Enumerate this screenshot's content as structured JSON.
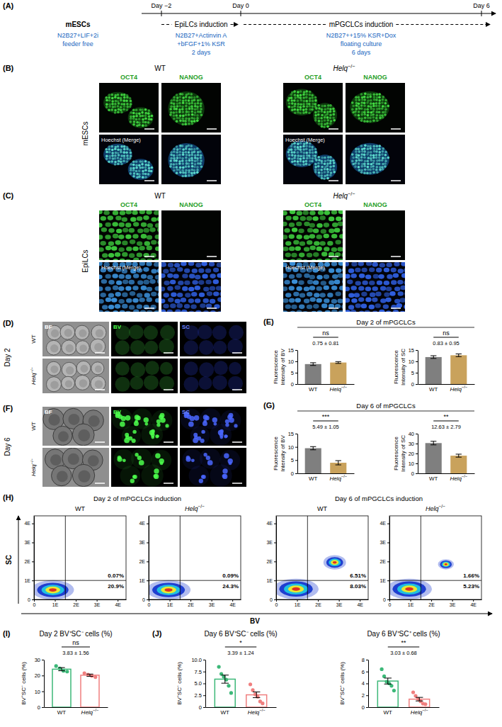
{
  "schematic": {
    "panel_label": "(A)",
    "days": [
      "Day −2",
      "Day 0",
      "Day 6"
    ],
    "stages": [
      {
        "label": "mESCs",
        "conditions": [
          "N2B27+LIF+2i",
          "feeder free"
        ]
      },
      {
        "label": "EpiLCs induction",
        "conditions": [
          "N2B27+Actinvin A",
          "+bFGF+1% KSR",
          "2 days"
        ]
      },
      {
        "label": "mPGCLCs induction",
        "conditions": [
          "N2B27++15% KSR+Dox",
          "floating culture",
          "6 days"
        ]
      }
    ]
  },
  "image_panels": [
    {
      "panel_label": "(B)",
      "row_title": "mESCs",
      "groups": [
        "WT",
        "Helq−/−"
      ],
      "channels": [
        "OCT4",
        "NANOG"
      ],
      "merge_label": "Hoechst (Merge)"
    },
    {
      "panel_label": "(C)",
      "row_title": "EpiLCs",
      "groups": [
        "WT",
        "Helq−/−"
      ],
      "channels": [
        "OCT4",
        "NANOG"
      ],
      "merge_label": "Hoechst (Merge)"
    },
    {
      "panel_label": "(D)",
      "row_title": "Day 2",
      "rows": [
        "WT",
        "Helq−/−"
      ],
      "channels": [
        "BF",
        "BV",
        "SC"
      ]
    },
    {
      "panel_label": "(F)",
      "row_title": "Day 6",
      "rows": [
        "WT",
        "Helq−/−"
      ],
      "channels": [
        "BF",
        "BV",
        "SC"
      ]
    }
  ],
  "panels": {
    "E": {
      "panel_label": "(E)",
      "title": "Day 2 of mPGCLCs"
    },
    "G": {
      "panel_label": "(G)",
      "title": "Day 6 of mPGCLCs"
    },
    "H": {
      "panel_label": "(H)",
      "titles": [
        "Day 2 of mPGCLCs induction",
        "Day 6 of mPGCLCs induction"
      ],
      "x_label": "BV",
      "y_label": "SC"
    },
    "I": {
      "panel_label": "(I)"
    },
    "J": {
      "panel_label": "(J)"
    }
  },
  "chart_data": [
    {
      "type": "bar",
      "y_label": "Fluorescence Intensity of BV",
      "categories": [
        "WT",
        "Helq−/−"
      ],
      "values": [
        8.8,
        9.5
      ],
      "errors": [
        0.6,
        0.4
      ],
      "colors": [
        "#7f7f7f",
        "#c9a25c"
      ],
      "ylim": [
        0,
        15
      ],
      "yticks": [
        0,
        5,
        10,
        15
      ],
      "significance": "ns",
      "difference": "0.75 ± 0.81"
    },
    {
      "type": "bar",
      "y_label": "Fluorescence Intensity of SC",
      "categories": [
        "WT",
        "Helq−/−"
      ],
      "values": [
        11.9,
        12.7
      ],
      "errors": [
        0.6,
        0.6
      ],
      "colors": [
        "#7f7f7f",
        "#c9a25c"
      ],
      "ylim": [
        0,
        15
      ],
      "yticks": [
        0,
        5,
        10,
        15
      ],
      "significance": "ns",
      "difference": "0.83 ± 0.95"
    },
    {
      "type": "bar",
      "y_label": "Fluorescence Intensity of BV",
      "categories": [
        "WT",
        "Helq−/−"
      ],
      "values": [
        9.5,
        4.0
      ],
      "errors": [
        0.6,
        0.8
      ],
      "colors": [
        "#7f7f7f",
        "#c9a25c"
      ],
      "ylim": [
        0,
        15
      ],
      "yticks": [
        0,
        5,
        10,
        15
      ],
      "significance": "***",
      "difference": "5.49 ± 1.05"
    },
    {
      "type": "bar",
      "y_label": "Fluorescence Intensity of SC",
      "categories": [
        "WT",
        "Helq−/−"
      ],
      "values": [
        30.5,
        17.8
      ],
      "errors": [
        1.8,
        1.5
      ],
      "colors": [
        "#7f7f7f",
        "#c9a25c"
      ],
      "ylim": [
        0,
        40
      ],
      "yticks": [
        0,
        10,
        20,
        30,
        40
      ],
      "significance": "**",
      "difference": "12.63 ± 2.79"
    },
    {
      "type": "density",
      "title": "WT",
      "xlim": [
        0,
        4.4
      ],
      "ylim": [
        0,
        4.4
      ],
      "xticks": [
        0,
        {
          "value": 1,
          "label": "1E"
        },
        {
          "value": 2,
          "label": "2E"
        },
        {
          "value": 3,
          "label": "3E"
        },
        {
          "value": 4,
          "label": "4E"
        }
      ],
      "yticks": [
        0,
        {
          "value": 1,
          "label": "1E"
        },
        {
          "value": 2,
          "label": "2E"
        },
        {
          "value": 3,
          "label": "3E"
        },
        {
          "value": 4,
          "label": "4E"
        }
      ],
      "gates": {
        "x": 1.5,
        "y": 1.0
      },
      "quadrant_labels": {
        "upper_right": "0.07%",
        "lower_right": "20.9%"
      },
      "populations": [
        {
          "x": 0.9,
          "y": 0.5,
          "spread_x": 0.75,
          "spread_y": 0.38
        }
      ]
    },
    {
      "type": "density",
      "title": "Helq−/−",
      "xlim": [
        0,
        4.4
      ],
      "ylim": [
        0,
        4.4
      ],
      "xticks": [
        0,
        {
          "value": 1,
          "label": "1E"
        },
        {
          "value": 2,
          "label": "2E"
        },
        {
          "value": 3,
          "label": "3E"
        },
        {
          "value": 4,
          "label": "4E"
        }
      ],
      "yticks": [
        0,
        {
          "value": 1,
          "label": "1E"
        },
        {
          "value": 2,
          "label": "2E"
        },
        {
          "value": 3,
          "label": "3E"
        },
        {
          "value": 4,
          "label": "4E"
        }
      ],
      "gates": {
        "x": 1.5,
        "y": 1.0
      },
      "quadrant_labels": {
        "upper_right": "0.09%",
        "lower_right": "24.3%"
      },
      "populations": [
        {
          "x": 0.95,
          "y": 0.5,
          "spread_x": 0.78,
          "spread_y": 0.38
        }
      ]
    },
    {
      "type": "density",
      "title": "WT",
      "xlim": [
        0,
        4.4
      ],
      "ylim": [
        0,
        4.4
      ],
      "xticks": [
        0,
        {
          "value": 1,
          "label": "1E"
        },
        {
          "value": 2,
          "label": "2E"
        },
        {
          "value": 3,
          "label": "3E"
        },
        {
          "value": 4,
          "label": "4E"
        }
      ],
      "yticks": [
        0,
        {
          "value": 1,
          "label": "1E"
        },
        {
          "value": 2,
          "label": "2E"
        },
        {
          "value": 3,
          "label": "3E"
        },
        {
          "value": 4,
          "label": "4E"
        }
      ],
      "gates": {
        "x": 1.5,
        "y": 1.0
      },
      "quadrant_labels": {
        "upper_right": "6.51%",
        "lower_right": "8.03%"
      },
      "populations": [
        {
          "x": 0.95,
          "y": 0.55,
          "spread_x": 0.8,
          "spread_y": 0.4
        },
        {
          "x": 2.8,
          "y": 1.95,
          "spread_x": 0.4,
          "spread_y": 0.28
        }
      ]
    },
    {
      "type": "density",
      "title": "Helq−/−",
      "xlim": [
        0,
        4.4
      ],
      "ylim": [
        0,
        4.4
      ],
      "xticks": [
        0,
        {
          "value": 1,
          "label": "1E"
        },
        {
          "value": 2,
          "label": "2E"
        },
        {
          "value": 3,
          "label": "3E"
        },
        {
          "value": 4,
          "label": "4E"
        }
      ],
      "yticks": [
        0,
        {
          "value": 1,
          "label": "1E"
        },
        {
          "value": 2,
          "label": "2E"
        },
        {
          "value": 3,
          "label": "3E"
        },
        {
          "value": 4,
          "label": "4E"
        }
      ],
      "gates": {
        "x": 1.5,
        "y": 1.0
      },
      "quadrant_labels": {
        "upper_right": "1.66%",
        "lower_right": "5.23%"
      },
      "populations": [
        {
          "x": 0.95,
          "y": 0.55,
          "spread_x": 0.8,
          "spread_y": 0.4
        },
        {
          "x": 2.7,
          "y": 1.85,
          "spread_x": 0.28,
          "spread_y": 0.2
        }
      ]
    },
    {
      "type": "bar",
      "title": "Day 2 BV⁺SC⁻ cells (%)",
      "y_label": "BV⁺SC⁻ cells (%)",
      "categories": [
        "WT",
        "Helq−/−"
      ],
      "values": [
        24.0,
        20.2
      ],
      "errors": [
        1.0,
        0.7
      ],
      "points": [
        [
          26.0,
          24.5,
          23.0,
          22.5
        ],
        [
          21.5,
          20.5,
          19.8,
          19.0
        ]
      ],
      "colors": [
        "#3cb878",
        "#f07f7f"
      ],
      "ylim": [
        0,
        30
      ],
      "yticks": [
        0,
        10,
        20,
        30
      ],
      "significance": "ns",
      "difference": "3.83 ± 1.56"
    },
    {
      "type": "bar",
      "title": "Day 6 BV⁺SC⁻ cells (%)",
      "y_label": "BV⁺SC⁻ cells (%)",
      "categories": [
        "WT",
        "Helq−/−"
      ],
      "values": [
        5.9,
        2.6
      ],
      "errors": [
        0.85,
        0.6
      ],
      "points": [
        [
          8.5,
          7.0,
          6.4,
          5.8,
          4.5,
          3.0
        ],
        [
          4.8,
          3.6,
          2.7,
          2.2,
          1.2,
          0.8
        ]
      ],
      "colors": [
        "#3cb878",
        "#f07f7f"
      ],
      "ylim": [
        0,
        10
      ],
      "yticks": [
        0,
        2.5,
        {
          "value": 5,
          "label": "5.0"
        },
        7.5,
        {
          "value": 10,
          "label": "10.0"
        }
      ],
      "significance": "*",
      "difference": "3.39 ± 1.24"
    },
    {
      "type": "bar",
      "title": "Day 6 BV⁺SC⁺ cells (%)",
      "y_label": "BV⁺SC⁺ cells (%)",
      "categories": [
        "WT",
        "Helq−/−"
      ],
      "values": [
        4.4,
        1.35
      ],
      "errors": [
        0.5,
        0.3
      ],
      "points": [
        [
          6.4,
          5.2,
          4.3,
          4.0,
          3.6,
          2.8
        ],
        [
          2.5,
          1.9,
          1.4,
          1.0,
          0.6,
          0.5
        ]
      ],
      "colors": [
        "#3cb878",
        "#f07f7f"
      ],
      "ylim": [
        0,
        8
      ],
      "yticks": [
        0,
        2,
        4,
        6,
        8
      ],
      "significance": "**",
      "difference": "3.03 ± 0.68"
    }
  ]
}
